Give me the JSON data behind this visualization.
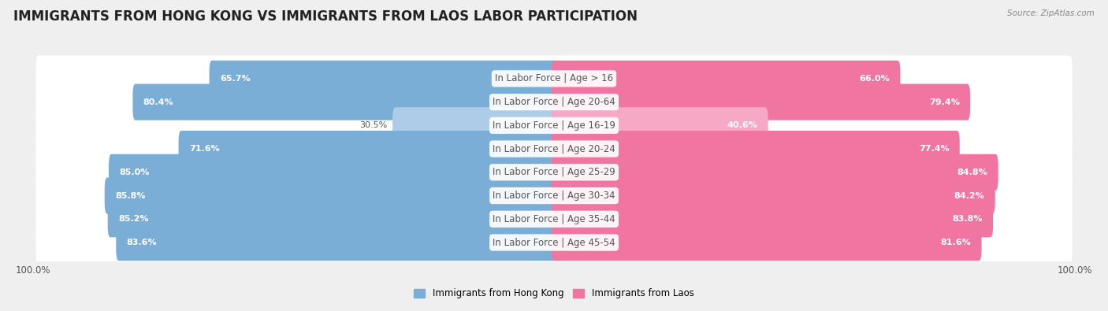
{
  "title": "IMMIGRANTS FROM HONG KONG VS IMMIGRANTS FROM LAOS LABOR PARTICIPATION",
  "source": "Source: ZipAtlas.com",
  "categories": [
    "In Labor Force | Age > 16",
    "In Labor Force | Age 20-64",
    "In Labor Force | Age 16-19",
    "In Labor Force | Age 20-24",
    "In Labor Force | Age 25-29",
    "In Labor Force | Age 30-34",
    "In Labor Force | Age 35-44",
    "In Labor Force | Age 45-54"
  ],
  "hk_values": [
    65.7,
    80.4,
    30.5,
    71.6,
    85.0,
    85.8,
    85.2,
    83.6
  ],
  "laos_values": [
    66.0,
    79.4,
    40.6,
    77.4,
    84.8,
    84.2,
    83.8,
    81.6
  ],
  "hk_color": "#7aaed6",
  "hk_color_light": "#aecce8",
  "laos_color": "#f075a0",
  "laos_color_light": "#f7a8c4",
  "bg_color": "#efefef",
  "max_val": 100.0,
  "legend_hk": "Immigrants from Hong Kong",
  "legend_laos": "Immigrants from Laos",
  "title_fontsize": 12,
  "label_fontsize": 8.5,
  "value_fontsize": 8.0,
  "axis_fontsize": 8.5,
  "label_color": "#555555"
}
